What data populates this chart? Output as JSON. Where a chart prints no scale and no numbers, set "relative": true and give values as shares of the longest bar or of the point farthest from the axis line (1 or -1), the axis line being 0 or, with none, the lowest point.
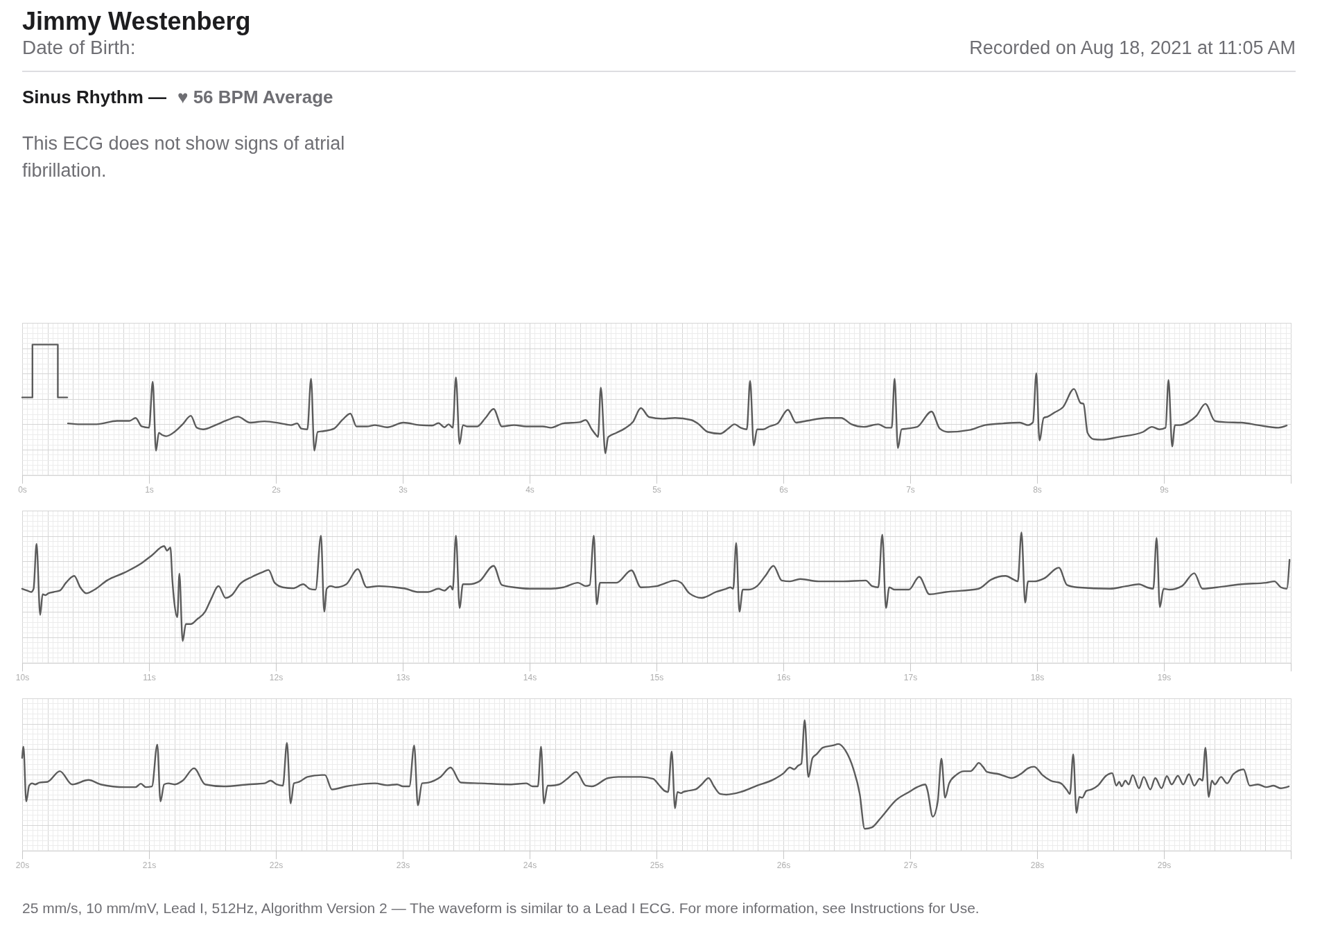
{
  "chart_data": [
    {
      "type": "other",
      "title": "Jimmy Westenberg",
      "annotations": [
        "Date of Birth:",
        "Recorded on Aug 18, 2021 at 11:05 AM",
        "Sinus Rhythm —",
        "♥ 56 BPM Average",
        "This ECG does not show signs of atrial fibrillation."
      ]
    },
    {
      "type": "line",
      "relative": true,
      "grid": true,
      "xlim": [
        0,
        10
      ],
      "xticks": [
        {
          "value": 0,
          "label": "0s"
        },
        {
          "value": 1,
          "label": "1s"
        },
        {
          "value": 2,
          "label": "2s"
        },
        {
          "value": 3,
          "label": "3s"
        },
        {
          "value": 4,
          "label": "4s"
        },
        {
          "value": 5,
          "label": "5s"
        },
        {
          "value": 6,
          "label": "6s"
        },
        {
          "value": 7,
          "label": "7s"
        },
        {
          "value": 8,
          "label": "8s"
        },
        {
          "value": 9,
          "label": "9s"
        },
        {
          "value": 10,
          "label": null
        }
      ],
      "series": [
        {
          "color": "#5b5b5b",
          "x": [
            0,
            0.081,
            0.081,
            0.281,
            0.281,
            0.355
          ],
          "values": [
            0.514,
            0.514,
            1,
            1,
            0.514,
            0.514
          ]
        },
        {
          "color": "#5b5b5b",
          "x": [
            0.361,
            0.458,
            0.587,
            0.748,
            0.845,
            0.894,
            0.942,
            1.0,
            1.029,
            1.055,
            1.077,
            1.103,
            1.135,
            1.2,
            1.265,
            1.329,
            1.377,
            1.426,
            1.523,
            1.619,
            1.7,
            1.797,
            1.91,
            2.039,
            2.119,
            2.168,
            2.2,
            2.248,
            2.277,
            2.303,
            2.329,
            2.377,
            2.458,
            2.523,
            2.587,
            2.635,
            2.716,
            2.781,
            2.877,
            3.006,
            3.135,
            3.232,
            3.281,
            3.329,
            3.361,
            3.394,
            3.419,
            3.448,
            3.474,
            3.506,
            3.587,
            3.652,
            3.716,
            3.781,
            3.877,
            3.974,
            4.103,
            4.168,
            4.265,
            4.394,
            4.442,
            4.49,
            4.523,
            4.539,
            4.561,
            4.597,
            4.619,
            4.684,
            4.748,
            4.813,
            4.877,
            4.942,
            5.049,
            5.146,
            5.275,
            5.324,
            5.405,
            5.502,
            5.566,
            5.615,
            5.663,
            5.712,
            5.738,
            5.767,
            5.793,
            5.841,
            5.89,
            5.955,
            6.036,
            6.1,
            6.181,
            6.343,
            6.456,
            6.537,
            6.634,
            6.748,
            6.812,
            6.854,
            6.877,
            6.903,
            6.932,
            6.974,
            7.055,
            7.168,
            7.233,
            7.298,
            7.476,
            7.589,
            7.735,
            7.864,
            7.929,
            7.968,
            7.994,
            8.019,
            8.052,
            8.084,
            8.139,
            8.204,
            8.291,
            8.343,
            8.366,
            8.398,
            8.447,
            8.511,
            8.641,
            8.835,
            8.906,
            8.964,
            9.013,
            9.036,
            9.065,
            9.087,
            9.126,
            9.191,
            9.256,
            9.327,
            9.401,
            9.482,
            9.612,
            9.741,
            9.903,
            9.968
          ],
          "values": [
            0.275,
            0.267,
            0.267,
            0.298,
            0.298,
            0.325,
            0.247,
            0.235,
            0.659,
            0.024,
            0.188,
            0.169,
            0.157,
            0.196,
            0.267,
            0.345,
            0.235,
            0.22,
            0.259,
            0.306,
            0.337,
            0.282,
            0.294,
            0.275,
            0.259,
            0.275,
            0.227,
            0.22,
            0.686,
            0.024,
            0.196,
            0.204,
            0.227,
            0.306,
            0.365,
            0.247,
            0.247,
            0.259,
            0.239,
            0.282,
            0.259,
            0.255,
            0.278,
            0.239,
            0.267,
            0.235,
            0.698,
            0.086,
            0.259,
            0.247,
            0.247,
            0.325,
            0.408,
            0.247,
            0.259,
            0.247,
            0.247,
            0.235,
            0.275,
            0.286,
            0.306,
            0.22,
            0.169,
            0.149,
            0.604,
            0,
            0.149,
            0.188,
            0.227,
            0.286,
            0.416,
            0.333,
            0.318,
            0.325,
            0.306,
            0.275,
            0.196,
            0.18,
            0.227,
            0.267,
            0.235,
            0.22,
            0.667,
            0.071,
            0.22,
            0.22,
            0.247,
            0.275,
            0.4,
            0.282,
            0.298,
            0.325,
            0.325,
            0.267,
            0.243,
            0.267,
            0.235,
            0.235,
            0.686,
            0.047,
            0.22,
            0.227,
            0.243,
            0.384,
            0.227,
            0.196,
            0.216,
            0.259,
            0.275,
            0.282,
            0.259,
            0.286,
            0.737,
            0.118,
            0.325,
            0.337,
            0.376,
            0.424,
            0.592,
            0.463,
            0.455,
            0.188,
            0.129,
            0.125,
            0.149,
            0.196,
            0.243,
            0.22,
            0.235,
            0.675,
            0.063,
            0.259,
            0.259,
            0.286,
            0.345,
            0.455,
            0.298,
            0.286,
            0.282,
            0.259,
            0.235,
            0.255
          ]
        }
      ]
    },
    {
      "type": "line",
      "relative": true,
      "grid": true,
      "xlim": [
        10,
        20
      ],
      "xticks": [
        {
          "value": 10,
          "label": "10s"
        },
        {
          "value": 11,
          "label": "11s"
        },
        {
          "value": 12,
          "label": "12s"
        },
        {
          "value": 13,
          "label": "13s"
        },
        {
          "value": 14,
          "label": "14s"
        },
        {
          "value": 15,
          "label": "15s"
        },
        {
          "value": 16,
          "label": "16s"
        },
        {
          "value": 17,
          "label": "17s"
        },
        {
          "value": 18,
          "label": "18s"
        },
        {
          "value": 19,
          "label": "19s"
        },
        {
          "value": 20,
          "label": null
        }
      ],
      "series": [
        {
          "color": "#5b5b5b",
          "x": [
            10.0,
            10.039,
            10.071,
            10.09,
            10.113,
            10.142,
            10.161,
            10.184,
            10.206,
            10.248,
            10.297,
            10.345,
            10.41,
            10.458,
            10.506,
            10.571,
            10.668,
            10.813,
            10.942,
            11.023,
            11.119,
            11.142,
            11.168,
            11.184,
            11.2,
            11.223,
            11.239,
            11.265,
            11.29,
            11.329,
            11.377,
            11.442,
            11.49,
            11.548,
            11.603,
            11.652,
            11.716,
            11.813,
            11.894,
            11.942,
            11.99,
            12.055,
            12.135,
            12.216,
            12.265,
            12.313,
            12.355,
            12.381,
            12.4,
            12.432,
            12.474,
            12.555,
            12.645,
            12.716,
            12.813,
            12.942,
            13.023,
            13.116,
            13.2,
            13.281,
            13.329,
            13.377,
            13.394,
            13.419,
            13.448,
            13.474,
            13.523,
            13.603,
            13.716,
            13.781,
            13.877,
            14.006,
            14.168,
            14.265,
            14.381,
            14.442,
            14.474,
            14.506,
            14.529,
            14.555,
            14.603,
            14.684,
            14.803,
            14.877,
            15.006,
            15.049,
            15.146,
            15.194,
            15.259,
            15.356,
            15.469,
            15.55,
            15.583,
            15.605,
            15.628,
            15.654,
            15.68,
            15.728,
            15.793,
            15.858,
            15.922,
            15.987,
            16.052,
            16.133,
            16.278,
            16.472,
            16.65,
            16.699,
            16.748,
            16.78,
            16.809,
            16.835,
            16.877,
            16.99,
            17.071,
            17.152,
            17.282,
            17.54,
            17.638,
            17.751,
            17.816,
            17.848,
            17.877,
            17.906,
            17.929,
            17.977,
            18.058,
            18.172,
            18.236,
            18.317,
            18.576,
            18.706,
            18.803,
            18.867,
            18.916,
            18.942,
            18.968,
            18.997,
            19.045,
            19.142,
            19.239,
            19.304,
            19.417,
            19.612,
            19.806,
            19.871,
            19.922,
            19.968,
            19.99
          ],
          "values": [
            0.481,
            0.464,
            0.451,
            0.481,
            0.895,
            0.241,
            0.43,
            0.422,
            0.439,
            0.451,
            0.464,
            0.536,
            0.599,
            0.494,
            0.439,
            0.473,
            0.557,
            0.633,
            0.717,
            0.789,
            0.873,
            0.831,
            0.861,
            0.557,
            0.346,
            0.219,
            0.62,
            0,
            0.156,
            0.156,
            0.198,
            0.27,
            0.388,
            0.506,
            0.397,
            0.422,
            0.523,
            0.591,
            0.633,
            0.654,
            0.536,
            0.494,
            0.485,
            0.523,
            0.481,
            0.473,
            0.97,
            0.27,
            0.481,
            0.506,
            0.494,
            0.523,
            0.662,
            0.494,
            0.506,
            0.494,
            0.481,
            0.451,
            0.451,
            0.481,
            0.464,
            0.506,
            0.473,
            0.97,
            0.304,
            0.523,
            0.523,
            0.549,
            0.692,
            0.515,
            0.494,
            0.481,
            0.481,
            0.494,
            0.536,
            0.506,
            0.515,
            0.97,
            0.338,
            0.536,
            0.536,
            0.536,
            0.65,
            0.494,
            0.506,
            0.523,
            0.557,
            0.536,
            0.439,
            0.397,
            0.451,
            0.481,
            0.494,
            0.481,
            0.903,
            0.27,
            0.473,
            0.473,
            0.506,
            0.599,
            0.692,
            0.557,
            0.549,
            0.57,
            0.549,
            0.549,
            0.557,
            0.506,
            0.494,
            0.979,
            0.304,
            0.494,
            0.473,
            0.473,
            0.591,
            0.43,
            0.451,
            0.481,
            0.565,
            0.599,
            0.565,
            0.549,
            1,
            0.354,
            0.549,
            0.549,
            0.578,
            0.675,
            0.515,
            0.494,
            0.481,
            0.506,
            0.523,
            0.494,
            0.481,
            0.949,
            0.312,
            0.481,
            0.473,
            0.506,
            0.624,
            0.481,
            0.494,
            0.523,
            0.536,
            0.549,
            0.494,
            0.481,
            0.747
          ]
        }
      ]
    },
    {
      "type": "line",
      "relative": true,
      "grid": true,
      "xlim": [
        20,
        30
      ],
      "xticks": [
        {
          "value": 20,
          "label": "20s"
        },
        {
          "value": 21,
          "label": "21s"
        },
        {
          "value": 22,
          "label": "22s"
        },
        {
          "value": 23,
          "label": "23s"
        },
        {
          "value": 24,
          "label": "24s"
        },
        {
          "value": 25,
          "label": "25s"
        },
        {
          "value": 26,
          "label": "26s"
        },
        {
          "value": 27,
          "label": "27s"
        },
        {
          "value": 28,
          "label": "28s"
        },
        {
          "value": 29,
          "label": "29s"
        },
        {
          "value": 30,
          "label": null
        }
      ],
      "series": [
        {
          "color": "#5b5b5b",
          "x": [
            20.0,
            20.01,
            20.032,
            20.055,
            20.077,
            20.103,
            20.135,
            20.2,
            20.297,
            20.394,
            20.523,
            20.619,
            20.813,
            20.894,
            20.935,
            20.974,
            21.023,
            21.065,
            21.09,
            21.119,
            21.152,
            21.2,
            21.265,
            21.355,
            21.442,
            21.587,
            21.781,
            21.91,
            21.958,
            22.006,
            22.055,
            22.087,
            22.116,
            22.142,
            22.184,
            22.248,
            22.361,
            22.387,
            22.442,
            22.555,
            22.781,
            22.877,
            22.955,
            23.003,
            23.052,
            23.09,
            23.119,
            23.152,
            23.2,
            23.297,
            23.377,
            23.458,
            23.619,
            23.845,
            23.974,
            24.023,
            24.065,
            24.09,
            24.113,
            24.142,
            24.168,
            24.232,
            24.297,
            24.368,
            24.442,
            24.49,
            24.619,
            24.7,
            24.877,
            24.974,
            25.016,
            25.065,
            25.091,
            25.12,
            25.146,
            25.165,
            25.194,
            25.21,
            25.243,
            25.307,
            25.356,
            25.411,
            25.453,
            25.502,
            25.55,
            25.663,
            25.793,
            25.922,
            26.003,
            26.052,
            26.084,
            26.117,
            26.142,
            26.168,
            26.197,
            26.23,
            26.262,
            26.311,
            26.392,
            26.434,
            26.489,
            26.553,
            26.602,
            26.641,
            26.699,
            26.764,
            26.893,
            26.99,
            27.055,
            27.12,
            27.136,
            27.178,
            27.217,
            27.246,
            27.275,
            27.307,
            27.362,
            27.427,
            27.476,
            27.508,
            27.54,
            27.573,
            27.605,
            27.702,
            27.799,
            27.88,
            27.929,
            27.977,
            28.042,
            28.107,
            28.188,
            28.236,
            28.259,
            28.285,
            28.311,
            28.333,
            28.356,
            28.388,
            28.43,
            28.479,
            28.544,
            28.592,
            28.625,
            28.647,
            28.667,
            28.696,
            28.722,
            28.754,
            28.803,
            28.841,
            28.893,
            28.932,
            28.981,
            29.023,
            29.061,
            29.11,
            29.152,
            29.197,
            29.239,
            29.281,
            29.304,
            29.327,
            29.353,
            29.378,
            29.401,
            29.45,
            29.498,
            29.547,
            29.628,
            29.676,
            29.741,
            29.806,
            29.864,
            29.919,
            29.984
          ],
          "values": [
            0.652,
            0.756,
            0.251,
            0.397,
            0.418,
            0.408,
            0.425,
            0.432,
            0.53,
            0.408,
            0.449,
            0.408,
            0.383,
            0.383,
            0.415,
            0.383,
            0.39,
            0.774,
            0.251,
            0.408,
            0.418,
            0.408,
            0.443,
            0.557,
            0.408,
            0.39,
            0.408,
            0.418,
            0.443,
            0.408,
            0.397,
            0.791,
            0.233,
            0.418,
            0.432,
            0.477,
            0.495,
            0.495,
            0.362,
            0.39,
            0.418,
            0.401,
            0.408,
            0.39,
            0.39,
            0.767,
            0.216,
            0.418,
            0.425,
            0.477,
            0.564,
            0.425,
            0.418,
            0.408,
            0.418,
            0.39,
            0.39,
            0.756,
            0.233,
            0.397,
            0.397,
            0.408,
            0.46,
            0.523,
            0.397,
            0.39,
            0.467,
            0.477,
            0.477,
            0.46,
            0.408,
            0.348,
            0.338,
            0.711,
            0.188,
            0.338,
            0.328,
            0.338,
            0.348,
            0.362,
            0.408,
            0.467,
            0.39,
            0.321,
            0.314,
            0.338,
            0.397,
            0.453,
            0.512,
            0.564,
            0.547,
            0.582,
            0.599,
            1,
            0.477,
            0.652,
            0.686,
            0.746,
            0.767,
            0.78,
            0.721,
            0.547,
            0.321,
            0,
            0.014,
            0.094,
            0.268,
            0.338,
            0.383,
            0.408,
            0.355,
            0.111,
            0.251,
            0.645,
            0.286,
            0.418,
            0.495,
            0.53,
            0.53,
            0.564,
            0.606,
            0.571,
            0.523,
            0.502,
            0.467,
            0.512,
            0.557,
            0.571,
            0.495,
            0.443,
            0.418,
            0.355,
            0.321,
            0.686,
            0.146,
            0.293,
            0.286,
            0.348,
            0.362,
            0.397,
            0.488,
            0.512,
            0.397,
            0.432,
            0.39,
            0.443,
            0.408,
            0.495,
            0.373,
            0.477,
            0.362,
            0.467,
            0.373,
            0.484,
            0.408,
            0.488,
            0.408,
            0.502,
            0.397,
            0.46,
            0.443,
            0.746,
            0.293,
            0.443,
            0.408,
            0.477,
            0.418,
            0.502,
            0.547,
            0.397,
            0.408,
            0.383,
            0.397,
            0.373,
            0.39
          ]
        }
      ],
      "annotations": [
        "25 mm/s, 10 mm/mV, Lead I, 512Hz, Algorithm Version 2 — The waveform is similar to a Lead I ECG. For more information, see Instructions for Use."
      ]
    }
  ]
}
